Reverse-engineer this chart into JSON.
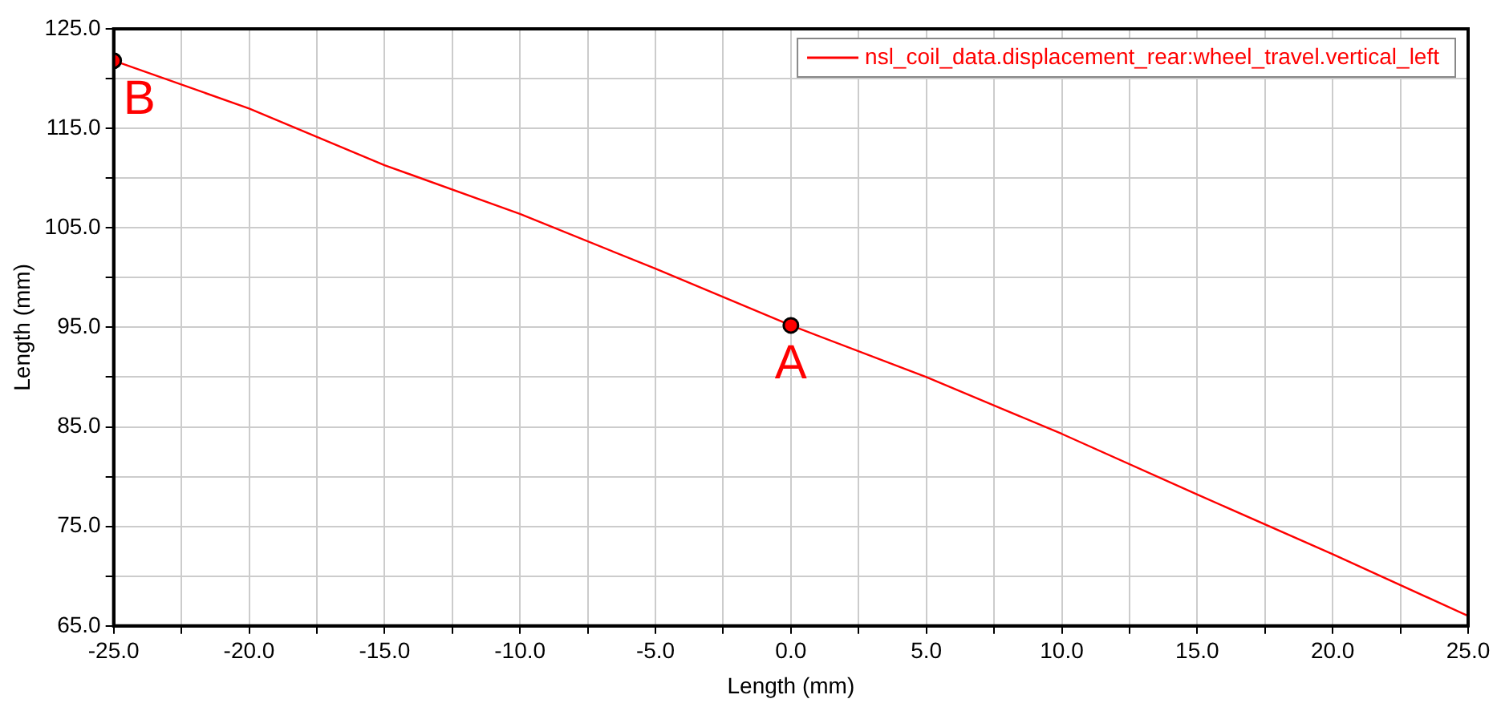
{
  "chart_data": {
    "type": "line",
    "xlabel": "Length (mm)",
    "ylabel": "Length (mm)",
    "x": [
      -25,
      -20,
      -15,
      -10,
      -5,
      0,
      5,
      10,
      15,
      20,
      25
    ],
    "series": [
      {
        "name": "nsl_coil_data.displacement_rear:wheel_travel.vertical_left",
        "color": "#ff0000",
        "values": [
          121.8,
          117.0,
          111.3,
          106.4,
          100.9,
          95.2,
          90.0,
          84.3,
          78.2,
          72.2,
          66.0
        ],
        "marker": "none"
      },
      {
        "type": "scatter",
        "color": "#ff0000",
        "x": [
          -25,
          0
        ],
        "values": [
          121.8,
          95.2
        ],
        "marker": "circle"
      }
    ],
    "xlim": [
      -25,
      25
    ],
    "xticks": [
      {
        "value": -25,
        "label": "-25.0"
      },
      {
        "value": -22.5,
        "label": null
      },
      {
        "value": -20,
        "label": "-20.0"
      },
      {
        "value": -17.5,
        "label": null
      },
      {
        "value": -15,
        "label": "-15.0"
      },
      {
        "value": -12.5,
        "label": null
      },
      {
        "value": -10,
        "label": "-10.0"
      },
      {
        "value": -7.5,
        "label": null
      },
      {
        "value": -5,
        "label": "-5.0"
      },
      {
        "value": -2.5,
        "label": null
      },
      {
        "value": 0,
        "label": "0.0"
      },
      {
        "value": 2.5,
        "label": null
      },
      {
        "value": 5,
        "label": "5.0"
      },
      {
        "value": 7.5,
        "label": null
      },
      {
        "value": 10,
        "label": "10.0"
      },
      {
        "value": 12.5,
        "label": null
      },
      {
        "value": 15,
        "label": "15.0"
      },
      {
        "value": 17.5,
        "label": null
      },
      {
        "value": 20,
        "label": "20.0"
      },
      {
        "value": 22.5,
        "label": null
      },
      {
        "value": 25,
        "label": "25.0"
      }
    ],
    "ylim": [
      65,
      125
    ],
    "yticks": [
      {
        "value": 65,
        "label": "65.0"
      },
      {
        "value": 70,
        "label": null
      },
      {
        "value": 75,
        "label": "75.0"
      },
      {
        "value": 80,
        "label": null
      },
      {
        "value": 85,
        "label": "85.0"
      },
      {
        "value": 90,
        "label": null
      },
      {
        "value": 95,
        "label": "95.0"
      },
      {
        "value": 100,
        "label": null
      },
      {
        "value": 105,
        "label": "105.0"
      },
      {
        "value": 110,
        "label": null
      },
      {
        "value": 115,
        "label": "115.0"
      },
      {
        "value": 120,
        "label": null
      },
      {
        "value": 125,
        "label": "125.0"
      }
    ],
    "annotations": [
      {
        "text": "B",
        "x": -25,
        "y": 121.8
      },
      {
        "text": "A",
        "x": 0,
        "y": 95.2
      }
    ],
    "grid": true,
    "legend": "top right",
    "line_style": "solid"
  }
}
